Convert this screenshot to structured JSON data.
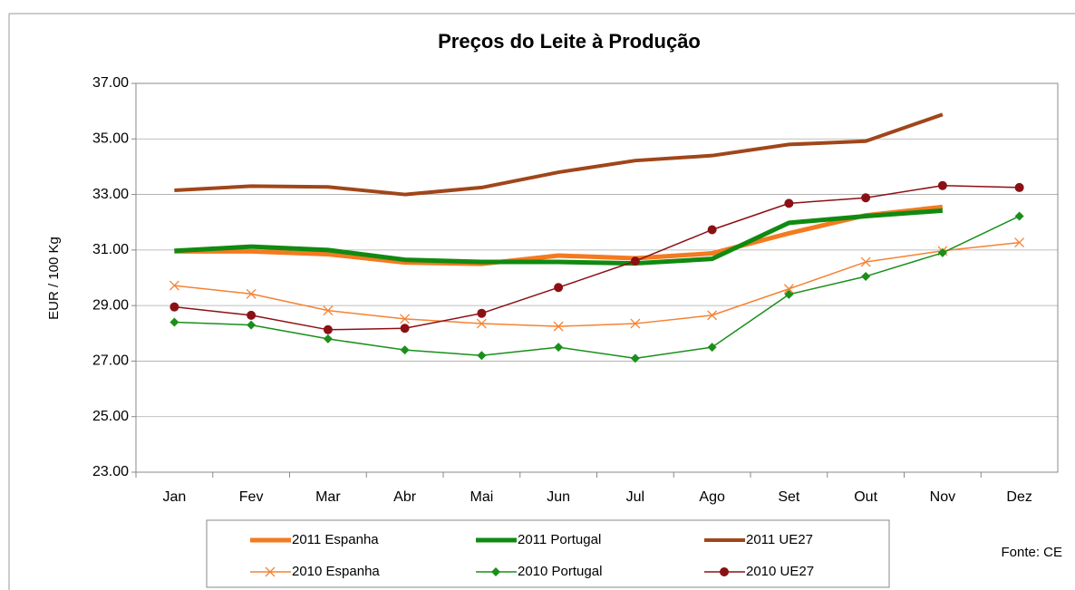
{
  "chart_data": {
    "type": "line",
    "title": "Preços do Leite à Produção",
    "y_label": "EUR / 100 Kg",
    "source": "Fonte: CE",
    "categories": [
      "Jan",
      "Fev",
      "Mar",
      "Abr",
      "Mai",
      "Jun",
      "Jul",
      "Ago",
      "Set",
      "Out",
      "Nov",
      "Dez"
    ],
    "ylim": [
      23,
      37
    ],
    "yticks": [
      {
        "value": 23,
        "label": "23.00"
      },
      {
        "value": 25,
        "label": "25.00"
      },
      {
        "value": 27,
        "label": "27.00"
      },
      {
        "value": 29,
        "label": "29.00"
      },
      {
        "value": 31,
        "label": "31.00"
      },
      {
        "value": 33,
        "label": "33.00"
      },
      {
        "value": 35,
        "label": "35.00"
      },
      {
        "value": 37,
        "label": "37.00"
      }
    ],
    "grid": true,
    "legend": "bottom",
    "series": [
      {
        "name": "2011 Espanha",
        "color": "#f47a20",
        "line_width": 5,
        "marker": "none",
        "values": [
          30.95,
          30.95,
          30.85,
          30.55,
          30.5,
          30.8,
          30.7,
          30.88,
          31.6,
          32.25,
          32.55,
          null
        ]
      },
      {
        "name": "2011 Portugal",
        "color": "#108a10",
        "line_width": 5,
        "marker": "none",
        "values": [
          30.97,
          31.12,
          31.0,
          30.65,
          30.57,
          30.57,
          30.52,
          30.68,
          31.98,
          32.22,
          32.42,
          null
        ]
      },
      {
        "name": "2011 UE27",
        "color": "#a0461a",
        "line_width": 4,
        "marker": "none",
        "values": [
          33.15,
          33.3,
          33.27,
          33.0,
          33.25,
          33.8,
          34.22,
          34.4,
          34.8,
          34.92,
          35.88,
          null
        ]
      },
      {
        "name": "2010 Espanha",
        "color": "#f58233",
        "line_width": 1.5,
        "marker": "x",
        "values": [
          29.72,
          29.42,
          28.82,
          28.52,
          28.35,
          28.25,
          28.35,
          28.65,
          29.6,
          30.57,
          30.97,
          31.27
        ]
      },
      {
        "name": "2010 Portugal",
        "color": "#1a8f1a",
        "line_width": 1.5,
        "marker": "diamond",
        "values": [
          28.4,
          28.3,
          27.8,
          27.4,
          27.2,
          27.5,
          27.1,
          27.5,
          29.4,
          30.05,
          30.9,
          32.22
        ]
      },
      {
        "name": "2010 UE27",
        "color": "#8b1014",
        "line_width": 1.5,
        "marker": "circle",
        "values": [
          28.95,
          28.65,
          28.13,
          28.18,
          28.72,
          29.65,
          30.6,
          31.73,
          32.68,
          32.88,
          33.32,
          33.25
        ]
      }
    ]
  }
}
